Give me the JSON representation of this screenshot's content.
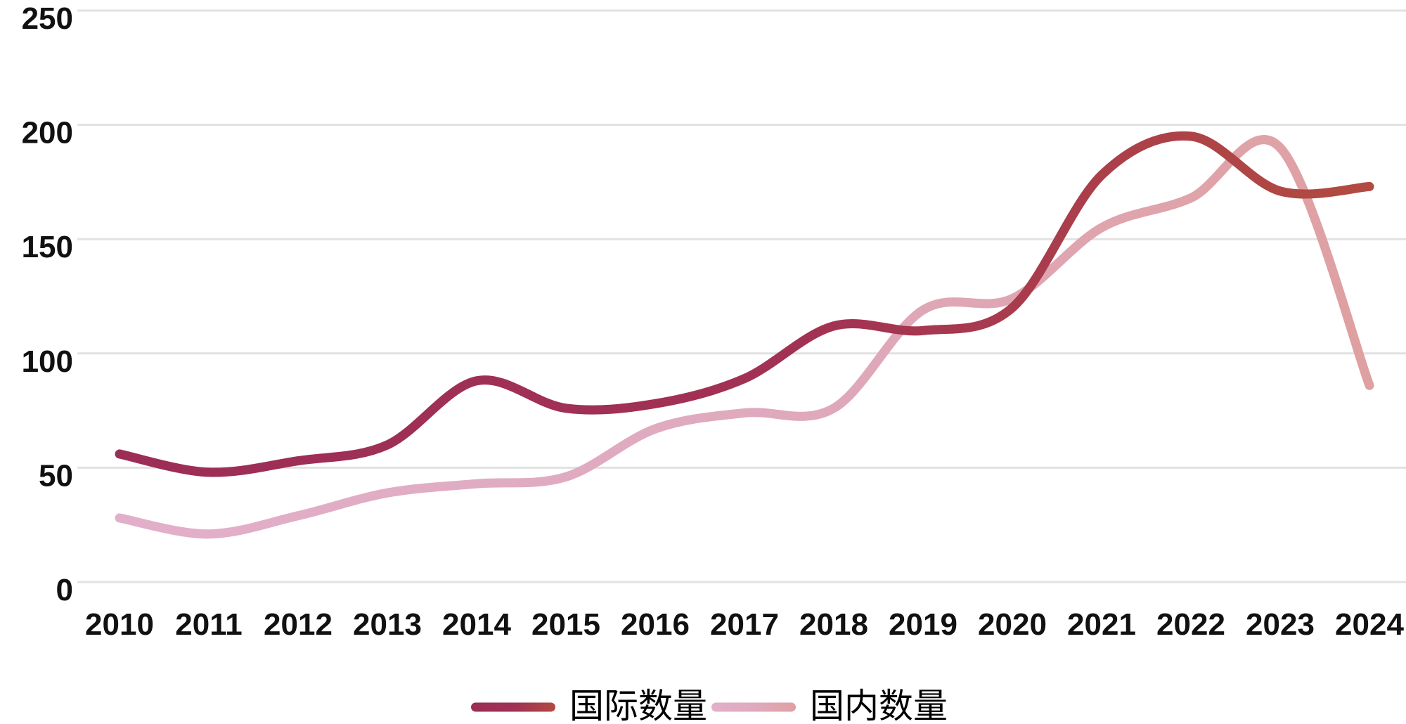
{
  "chart_data": {
    "type": "line",
    "x": [
      2010,
      2011,
      2012,
      2013,
      2014,
      2015,
      2016,
      2017,
      2018,
      2019,
      2020,
      2021,
      2022,
      2023,
      2024
    ],
    "series": [
      {
        "name": "国际数量",
        "values": [
          56,
          48,
          53,
          60,
          88,
          76,
          78,
          89,
          112,
          110,
          120,
          178,
          195,
          171,
          173
        ],
        "gradient": [
          "#9C2D56",
          "#A23254",
          "#B24B41"
        ]
      },
      {
        "name": "国内数量",
        "values": [
          28,
          21,
          29,
          39,
          43,
          46,
          67,
          74,
          76,
          119,
          124,
          155,
          168,
          190,
          86
        ],
        "gradient": [
          "#E2AFCA",
          "#DFA9BC",
          "#DFA0A1"
        ]
      }
    ],
    "title": "",
    "xlabel": "",
    "ylabel": "",
    "ylim": [
      0,
      250
    ],
    "yticks": [
      0,
      50,
      100,
      150,
      200,
      250
    ],
    "grid": "horizontal-only",
    "gridline_color": "#E2E2E2",
    "tick_label_color": "#111111",
    "legend_position": "bottom-center",
    "line_smoothing": "spline"
  }
}
